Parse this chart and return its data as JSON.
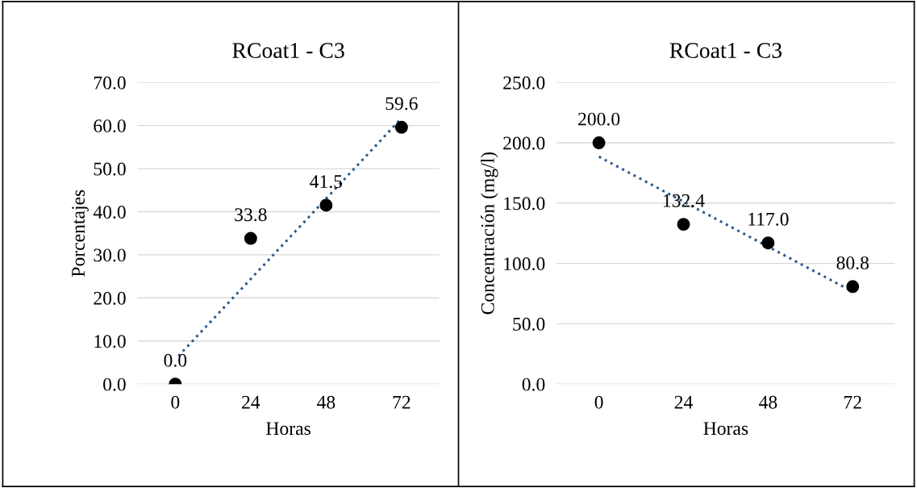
{
  "chart_data": [
    {
      "type": "scatter",
      "title": "RCoat1 - C3",
      "xlabel": "Horas",
      "ylabel": "Porcentajes",
      "x": [
        0,
        24,
        48,
        72
      ],
      "xlim": [
        -12,
        84
      ],
      "xticks": [
        0,
        24,
        48,
        72
      ],
      "ylim": [
        0,
        70
      ],
      "yticks": [
        {
          "value": 0,
          "label": "0.0"
        },
        {
          "value": 10,
          "label": "10.0"
        },
        {
          "value": 20,
          "label": "20.0"
        },
        {
          "value": 30,
          "label": "30.0"
        },
        {
          "value": 40,
          "label": "40.0"
        },
        {
          "value": 50,
          "label": "50.0"
        },
        {
          "value": 60,
          "label": "60.0"
        },
        {
          "value": 70,
          "label": "70.0"
        }
      ],
      "grid": "y",
      "legend": false,
      "series": [
        {
          "marker": "circle",
          "color": "#000000",
          "values": [
            0.0,
            33.8,
            41.5,
            59.6
          ],
          "value_labels": [
            "0.0",
            "33.8",
            "41.5",
            "59.6"
          ]
        },
        {
          "type": "line",
          "color": "#2e5a8c",
          "line_style": "dotted",
          "x": [
            1,
            72
          ],
          "values": [
            6.5,
            61.7
          ]
        }
      ]
    },
    {
      "type": "scatter",
      "title": "RCoat1 - C3",
      "xlabel": "Horas",
      "ylabel": "Concentración (mg/l)",
      "x": [
        0,
        24,
        48,
        72
      ],
      "xlim": [
        -12,
        84
      ],
      "xticks": [
        0,
        24,
        48,
        72
      ],
      "ylim": [
        0,
        250
      ],
      "yticks": [
        {
          "value": 0,
          "label": "0.0"
        },
        {
          "value": 50,
          "label": "50.0"
        },
        {
          "value": 100,
          "label": "100.0"
        },
        {
          "value": 150,
          "label": "150.0"
        },
        {
          "value": 200,
          "label": "200.0"
        },
        {
          "value": 250,
          "label": "250.0"
        }
      ],
      "grid": "y",
      "legend": false,
      "series": [
        {
          "marker": "circle",
          "color": "#000000",
          "values": [
            200.0,
            132.4,
            117.0,
            80.8
          ],
          "value_labels": [
            "200.0",
            "132.4",
            "117.0",
            "80.8"
          ]
        },
        {
          "type": "line",
          "color": "#2e5a8c",
          "line_style": "dotted",
          "x": [
            0,
            72
          ],
          "values": [
            188.5,
            76.6
          ]
        }
      ]
    }
  ]
}
